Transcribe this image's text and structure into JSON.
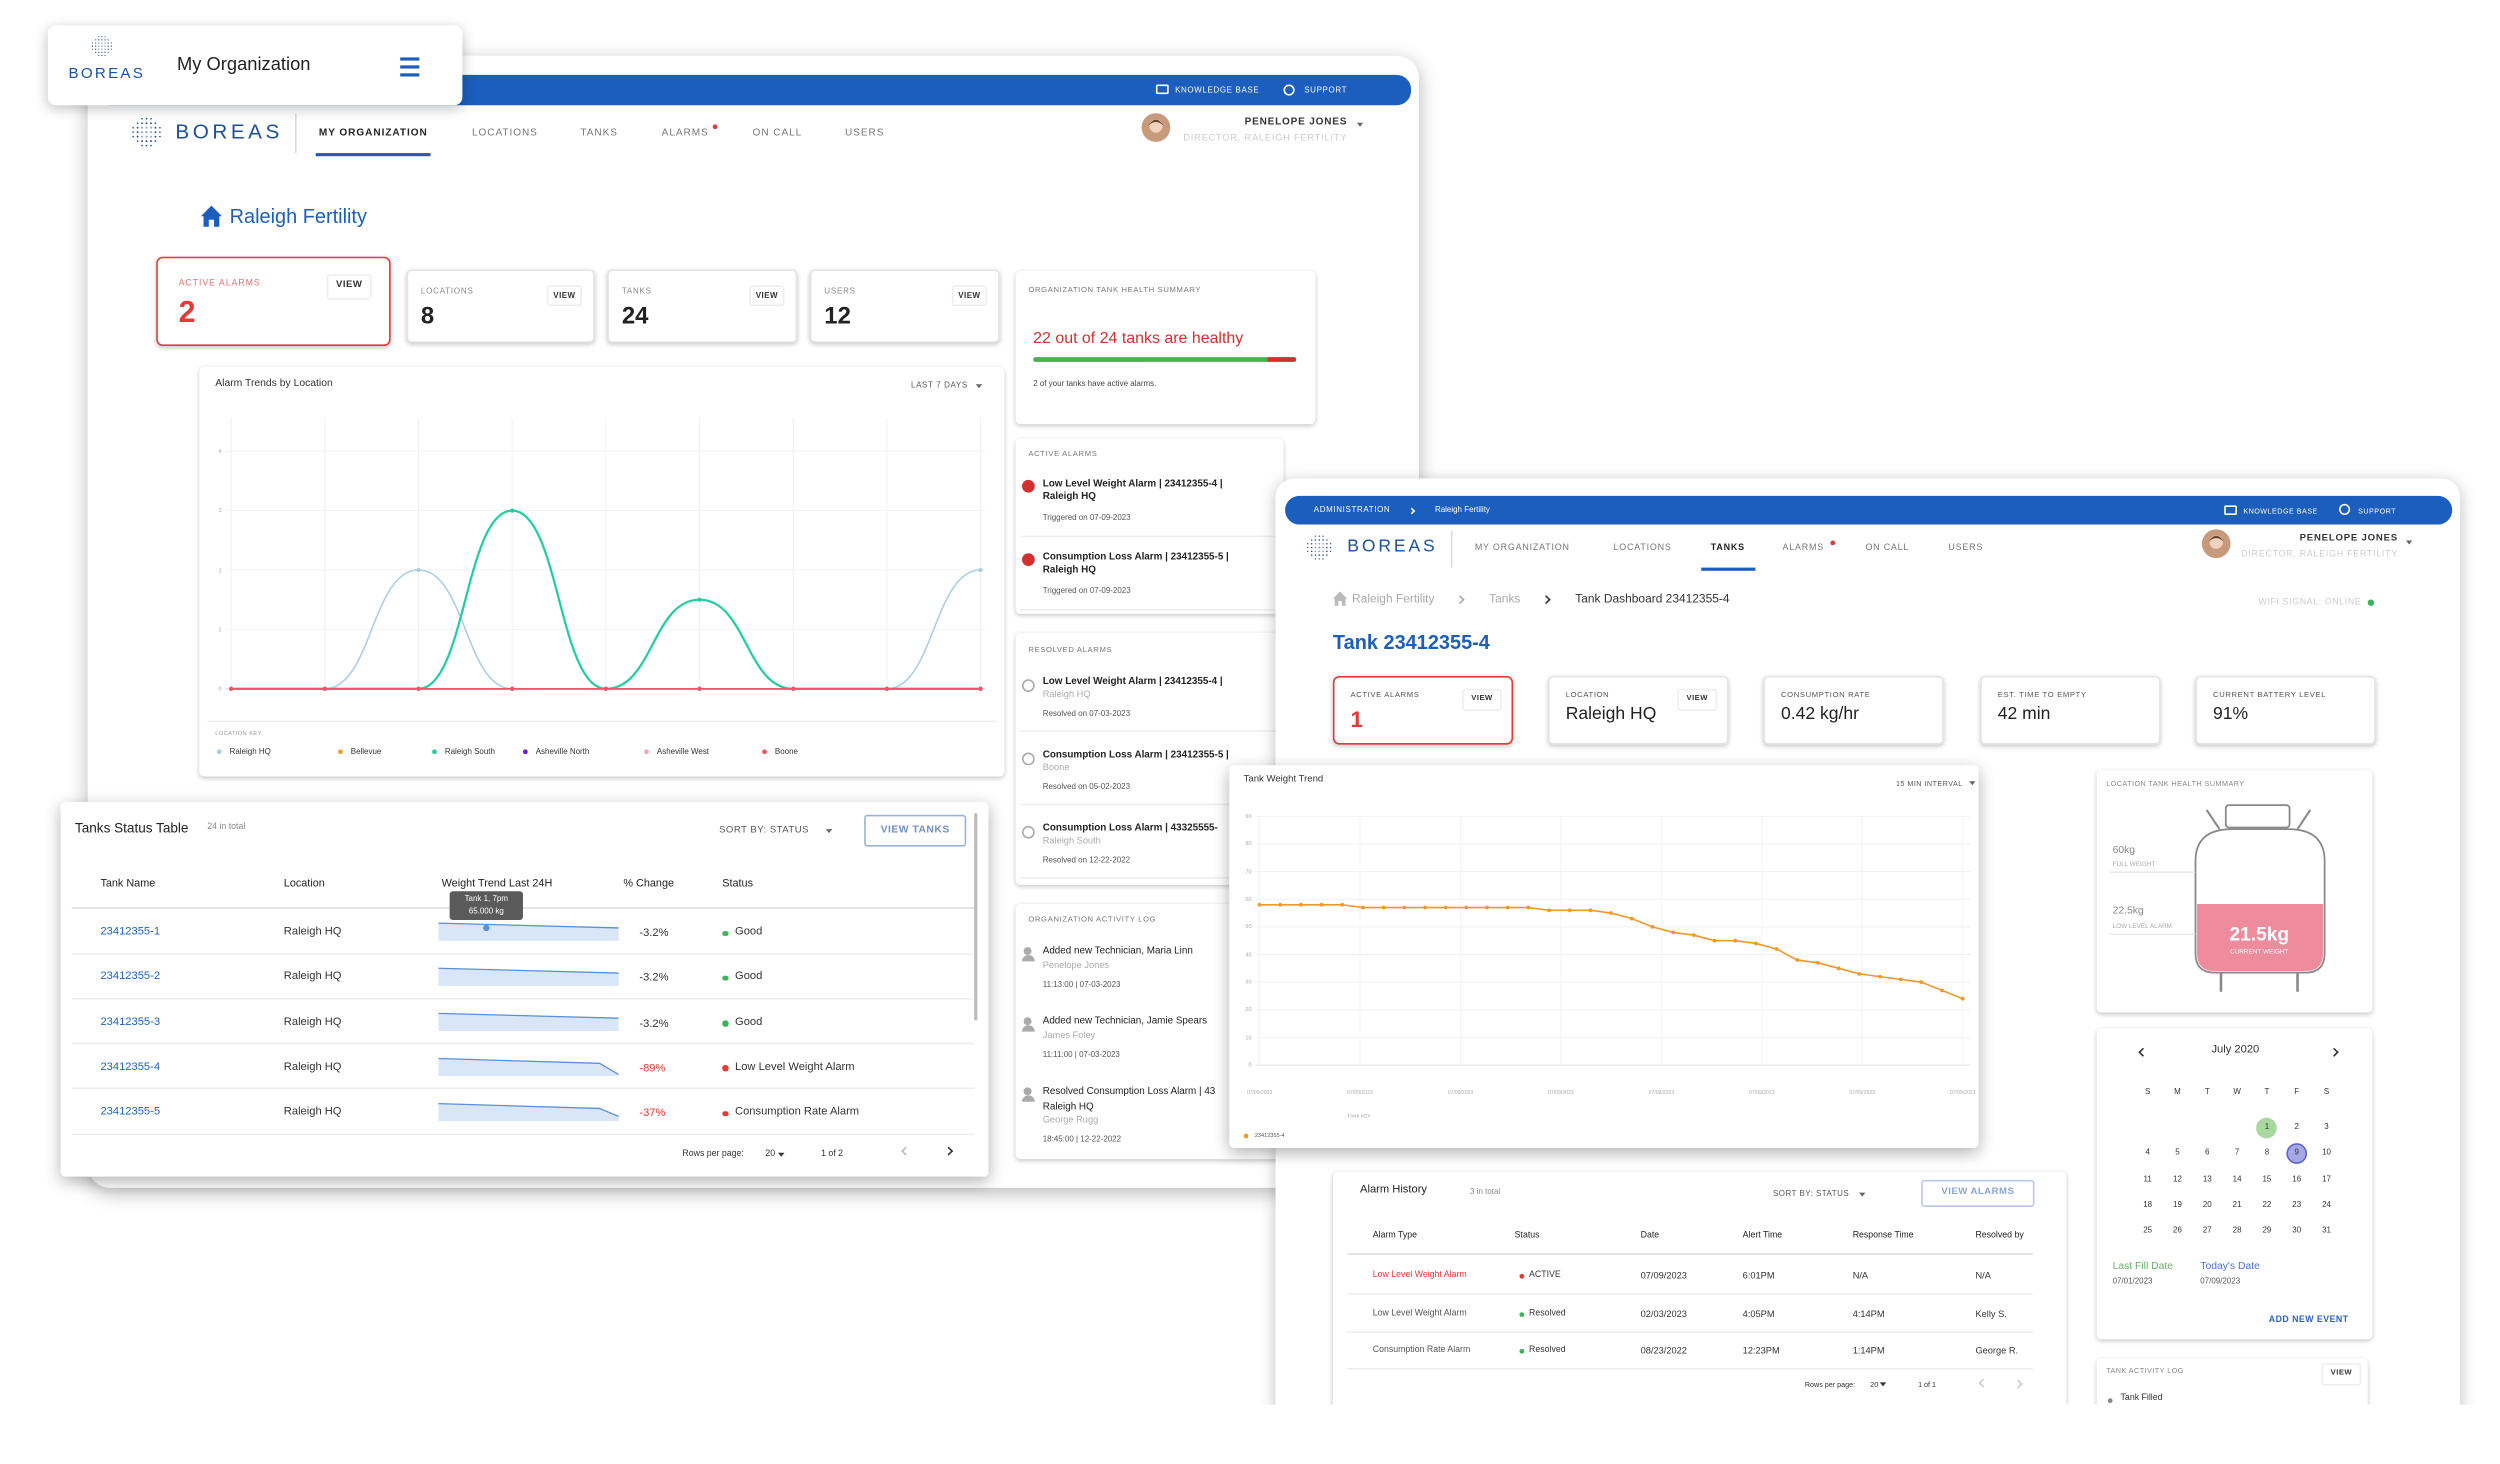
{
  "popup": {
    "logo": "BOREAS",
    "title": "My Organization"
  },
  "back": {
    "topbar": [
      "KNOWLEDGE BASE",
      "SUPPORT"
    ],
    "logo": "BOREAS",
    "tabs": [
      "MY ORGANIZATION",
      "LOCATIONS",
      "TANKS",
      "ALARMS",
      "ON CALL",
      "USERS"
    ],
    "user": {
      "name": "PENELOPE JONES",
      "role": "DIRECTOR, RALEIGH FERTILITY"
    },
    "org": "Raleigh Fertility",
    "stats": [
      {
        "label": "ACTIVE ALARMS",
        "value": 2,
        "action": "VIEW"
      },
      {
        "label": "LOCATIONS",
        "value": 8,
        "action": "VIEW"
      },
      {
        "label": "TANKS",
        "value": 24,
        "action": "VIEW"
      },
      {
        "label": "USERS",
        "value": 12,
        "action": "VIEW"
      }
    ],
    "health": {
      "title": "ORGANIZATION TANK HEALTH SUMMARY",
      "headline": "22 out of 24 tanks are healthy",
      "note": "2 of your tanks have active alarms."
    },
    "active_alarms": {
      "title": "ACTIVE ALARMS",
      "items": [
        {
          "title": "Low Level Weight Alarm | 23412355-4 | Raleigh HQ",
          "date": "Triggered on 07-09-2023"
        },
        {
          "title": "Consumption Loss Alarm | 23412355-5 | Raleigh HQ",
          "date": "Triggered on 07-09-2023"
        }
      ]
    },
    "resolved_alarms": {
      "title": "RESOLVED ALARMS",
      "items": [
        {
          "title": "Low Level Weight Alarm | 23412355-4 |",
          "location": "Raleigh HQ",
          "date": "Resolved on 07-03-2023"
        },
        {
          "title": "Consumption Loss Alarm | 23412355-5 |",
          "location": "Boone",
          "date": "Resolved on 05-02-2023"
        },
        {
          "title": "Consumption Loss Alarm | 43325555-",
          "location": "Raleigh South",
          "date": "Resolved on 12-22-2022"
        }
      ]
    },
    "activity": {
      "title": "ORGANIZATION ACTIVITY LOG",
      "items": [
        {
          "title": "Added new Technician, Maria Linn",
          "by": "Penelope Jones",
          "time": "11:13:00 | 07-03-2023"
        },
        {
          "title": "Added new Technician, Jamie Spears",
          "by": "James Foley",
          "time": "11:11:00 | 07-03-2023"
        },
        {
          "title": "Resolved Consumption Loss Alarm | 43",
          "location": "Raleigh HQ",
          "by": "George Rugg",
          "time": "18:45:00 | 12-22-2022"
        }
      ]
    },
    "alarm_chart": {
      "type": "line",
      "title": "Alarm Trends by Location",
      "range": "LAST 7 DAYS",
      "legend_title": "LOCATION KEY",
      "ylim": [
        0,
        4
      ],
      "yticks": [
        0,
        1,
        2,
        3,
        4
      ],
      "series": [
        {
          "name": "Raleigh HQ",
          "color": "#a9cfe9",
          "values": [
            0,
            0,
            2,
            0,
            0,
            0,
            0,
            0,
            2
          ]
        },
        {
          "name": "Bellevue",
          "color": "#f59b2a",
          "values": [
            0,
            0,
            0,
            0,
            0,
            0,
            0,
            0,
            0
          ]
        },
        {
          "name": "Raleigh South",
          "color": "#1fcf9f",
          "values": [
            0,
            0,
            0,
            3,
            0,
            1.5,
            0,
            0,
            0
          ]
        },
        {
          "name": "Asheville North",
          "color": "#6a1fd0",
          "values": [
            0,
            0,
            0,
            0,
            0,
            0,
            0,
            0,
            0
          ]
        },
        {
          "name": "Asheville West",
          "color": "#f4a3b8",
          "values": [
            0,
            0,
            0,
            0,
            0,
            0,
            0,
            0,
            0
          ]
        },
        {
          "name": "Boone",
          "color": "#ee5566",
          "values": [
            0,
            0,
            0,
            0,
            0,
            0,
            0,
            0,
            0
          ]
        }
      ]
    }
  },
  "tanks_table": {
    "title": "Tanks Status Table",
    "count": "24 in total",
    "sort": "SORT BY: STATUS",
    "button": "VIEW TANKS",
    "columns": [
      "Tank Name",
      "Location",
      "Weight Trend Last 24H",
      "% Change",
      "Status"
    ],
    "rows": [
      {
        "name": "23412355-1",
        "location": "Raleigh HQ",
        "change": "-3.2%",
        "status": "Good",
        "color": "#3cb35a"
      },
      {
        "name": "23412355-2",
        "location": "Raleigh HQ",
        "change": "-3.2%",
        "status": "Good",
        "color": "#3cb35a"
      },
      {
        "name": "23412355-3",
        "location": "Raleigh HQ",
        "change": "-3.2%",
        "status": "Good",
        "color": "#3cb35a"
      },
      {
        "name": "23412355-4",
        "location": "Raleigh HQ",
        "change": "-89%",
        "status": "Low Level Weight Alarm",
        "color": "#e53935"
      },
      {
        "name": "23412355-5",
        "location": "Raleigh HQ",
        "change": "-37%",
        "status": "Consumption Rate Alarm",
        "color": "#e53935"
      }
    ],
    "tooltip": [
      "Tank 1, 7pm",
      "65.000 kg"
    ],
    "rows_per_page_label": "Rows per page:",
    "rows_per_page": 20,
    "pages": "1 of 2"
  },
  "front": {
    "topbar": {
      "crumb": [
        "ADMINISTRATION",
        "Raleigh Fertility"
      ],
      "links": [
        "KNOWLEDGE BASE",
        "SUPPORT"
      ]
    },
    "logo": "BOREAS",
    "tabs": [
      "MY ORGANIZATION",
      "LOCATIONS",
      "TANKS",
      "ALARMS",
      "ON CALL",
      "USERS"
    ],
    "user": {
      "name": "PENELOPE JONES",
      "role": "DIRECTOR, RALEIGH FERTILITY"
    },
    "breadcrumb": [
      "Raleigh Fertility",
      "Tanks",
      "Tank Dashboard 23412355-4"
    ],
    "wifi": "WIFI SIGNAL: ONLINE",
    "title": "Tank 23412355-4",
    "stats": [
      {
        "label": "ACTIVE ALARMS",
        "value": 1,
        "action": "VIEW"
      },
      {
        "label": "LOCATION",
        "value": "Raleigh HQ",
        "action": "VIEW"
      },
      {
        "label": "CONSUMPTION RATE",
        "value": "0.42 kg/hr"
      },
      {
        "label": "EST. TIME TO EMPTY",
        "value": "42 min"
      },
      {
        "label": "CURRENT BATTERY LEVEL",
        "value": "91%"
      }
    ],
    "health": {
      "title": "LOCATION TANK HEALTH SUMMARY",
      "full": "60kg",
      "full_label": "FULL WEIGHT",
      "low": "22.5kg",
      "low_label": "LOW LEVEL ALARM",
      "current": "21.5kg",
      "current_label": "CURRENT WEIGHT"
    },
    "calendar": {
      "month": "July 2020",
      "weekdays": [
        "S",
        "M",
        "T",
        "W",
        "T",
        "F",
        "S"
      ],
      "days": [
        1,
        2,
        3,
        4,
        5,
        6,
        7,
        8,
        9,
        10,
        11,
        12,
        13,
        14,
        15,
        16,
        17,
        18,
        19,
        20,
        21,
        22,
        23,
        24,
        25,
        26,
        27,
        28,
        29,
        30,
        31
      ],
      "marked": [
        {
          "day": 1,
          "color": "#a8d8a0"
        },
        {
          "day": 9,
          "color": "#a4a9e6"
        }
      ],
      "last_fill_label": "Last Fill Date",
      "last_fill": "07/01/2023",
      "today_label": "Today's Date",
      "today": "07/09/2023",
      "action": "ADD NEW EVENT"
    },
    "tank_log": {
      "title": "TANK ACTIVITY LOG",
      "action": "VIEW",
      "items": [
        "Tank Filled"
      ]
    },
    "alarm_history": {
      "title": "Alarm History",
      "count": "3 in total",
      "sort": "SORT BY: STATUS",
      "button": "VIEW ALARMS",
      "columns": [
        "Alarm Type",
        "Status",
        "Date",
        "Alert Time",
        "Response Time",
        "Resolved by"
      ],
      "rows": [
        {
          "type": "Low Level Weight Alarm",
          "status": "ACTIVE",
          "date": "07/09/2023",
          "alert": "6:01PM",
          "response": "N/A",
          "resolved_by": "N/A",
          "color": "#e53935"
        },
        {
          "type": "Low Level Weight Alarm",
          "status": "Resolved",
          "date": "02/03/2023",
          "alert": "4:05PM",
          "response": "4:14PM",
          "resolved_by": "Kelly S.",
          "color": "#3cb35a"
        },
        {
          "type": "Consumption Rate Alarm",
          "status": "Resolved",
          "date": "08/23/2022",
          "alert": "12:23PM",
          "response": "1:14PM",
          "resolved_by": "George R.",
          "color": "#3cb35a"
        }
      ],
      "rows_per_page_label": "Rows per page:",
      "rows_per_page": 20,
      "pages": "1 of 1"
    },
    "trend_chart": {
      "type": "line",
      "title": "Tank Weight Trend",
      "interval": "15 MIN INTERVAL",
      "legend_title": "TANK KEY",
      "ylim": [
        0,
        90
      ],
      "yticks": [
        0,
        10,
        20,
        30,
        40,
        50,
        60,
        70,
        80,
        90
      ],
      "xlabels": [
        "07/09/2023",
        "07/09/2023",
        "07/09/2023",
        "07/09/2023",
        "07/09/2023",
        "07/09/2023",
        "07/09/2023",
        "07/09/2023"
      ],
      "series": [
        {
          "name": "23412355-4",
          "color": "#f0982a",
          "values": [
            58,
            58,
            58,
            58,
            58,
            57,
            57,
            57,
            57,
            57,
            57,
            57,
            57,
            57,
            56,
            56,
            56,
            55,
            53,
            50,
            48,
            47,
            45,
            45,
            44,
            42,
            38,
            37,
            35,
            33,
            32,
            31,
            30,
            27,
            24
          ]
        }
      ]
    }
  }
}
